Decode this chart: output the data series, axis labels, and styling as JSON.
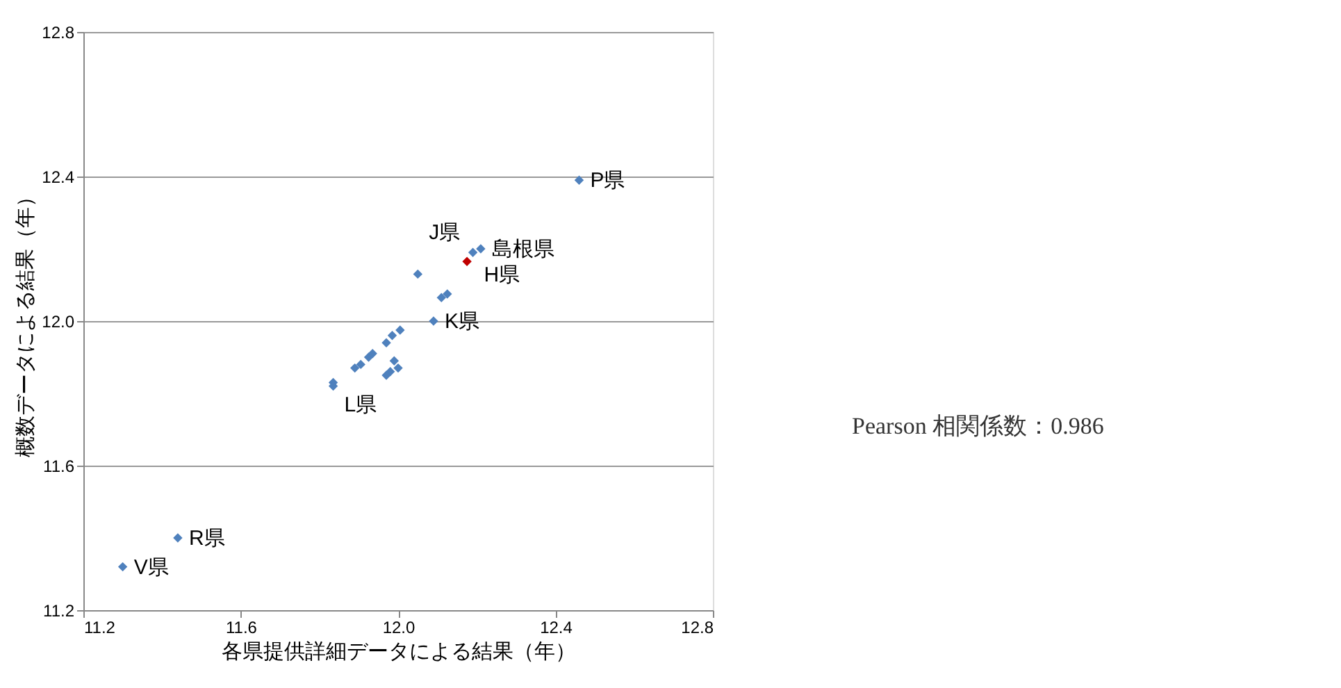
{
  "chart_data": {
    "type": "scatter",
    "xlabel": "各県提供詳細データによる結果（年）",
    "ylabel": "概数データによる結果（年）",
    "x": [
      12.46,
      11.44,
      11.3,
      12.21,
      12.19,
      12.175,
      12.05,
      12.11,
      12.125,
      12.09,
      12.005,
      11.985,
      11.97,
      11.925,
      11.935,
      11.89,
      11.905,
      11.98,
      11.97,
      11.835,
      11.835,
      11.99,
      12.0
    ],
    "values": [
      12.39,
      11.4,
      11.32,
      12.2,
      12.19,
      12.165,
      12.13,
      12.065,
      12.075,
      12.0,
      11.975,
      11.96,
      11.94,
      11.9,
      11.91,
      11.87,
      11.88,
      11.86,
      11.85,
      11.83,
      11.82,
      11.89,
      11.87
    ],
    "value_labels": [
      "P県",
      "R県",
      "V県",
      "島根県",
      "H県",
      null,
      "J県",
      null,
      null,
      "K県",
      null,
      null,
      null,
      null,
      null,
      null,
      null,
      null,
      null,
      "L県",
      null,
      null,
      null
    ],
    "colors": [
      "#4f81bd",
      "#4f81bd",
      "#4f81bd",
      "#4f81bd",
      "#4f81bd",
      "#c00000",
      "#4f81bd",
      "#4f81bd",
      "#4f81bd",
      "#4f81bd",
      "#4f81bd",
      "#4f81bd",
      "#4f81bd",
      "#4f81bd",
      "#4f81bd",
      "#4f81bd",
      "#4f81bd",
      "#4f81bd",
      "#4f81bd",
      "#4f81bd",
      "#4f81bd",
      "#4f81bd",
      "#4f81bd"
    ],
    "marker": "diamond",
    "xlim": [
      11.2,
      12.8
    ],
    "ylim": [
      11.2,
      12.8
    ],
    "xticks": [
      11.2,
      11.6,
      {
        "value": 12,
        "label": "12.0"
      },
      12.4,
      12.8
    ],
    "yticks": [
      11.2,
      11.6,
      {
        "value": 12,
        "label": "12.0"
      },
      12.4,
      12.8
    ],
    "grid": "y",
    "annotations": [
      "Pearson 相関係数：0.986"
    ]
  }
}
